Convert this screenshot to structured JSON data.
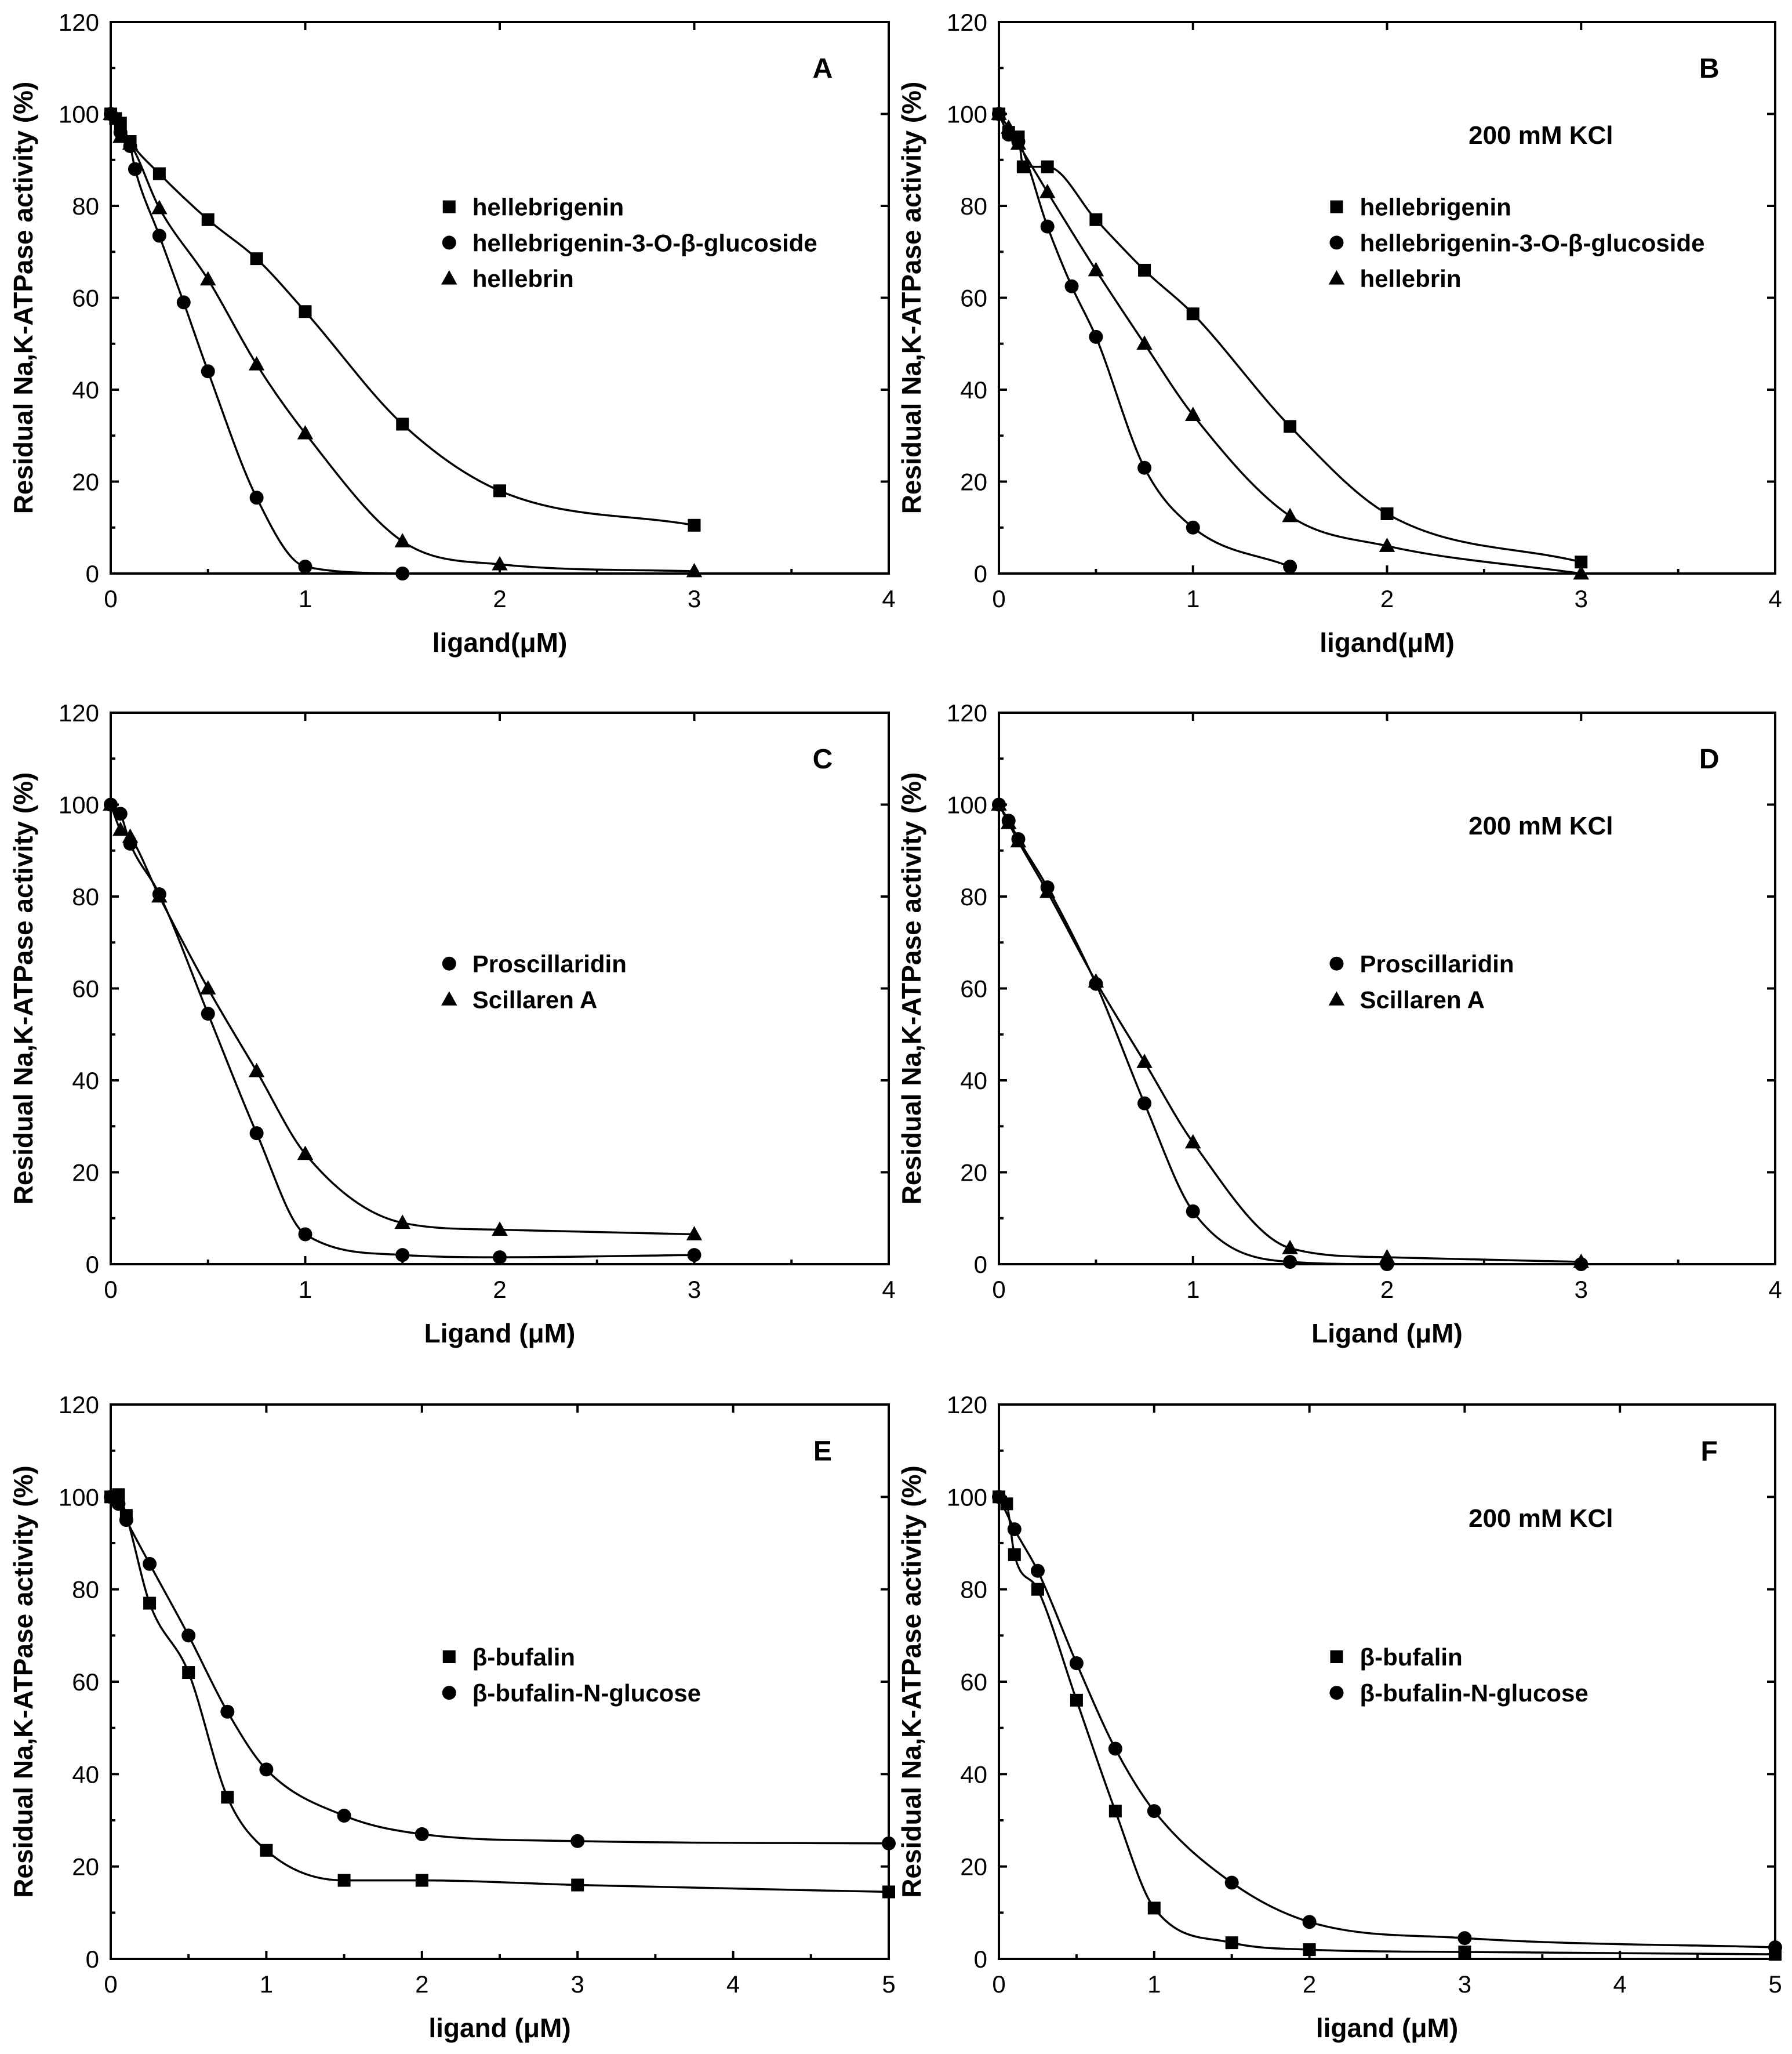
{
  "chart_data": [
    {
      "type": "scatter",
      "panel_label": "A",
      "annotation": "",
      "xlabel": "ligand(μM)",
      "ylabel": "Residual Na,K-ATPase activity (%)",
      "xlim": [
        0,
        4
      ],
      "ylim": [
        0,
        120
      ],
      "xticks": [
        "0",
        "1",
        "2",
        "3",
        "4"
      ],
      "yticks": [
        "0",
        "20",
        "40",
        "60",
        "80",
        "100",
        "120"
      ],
      "legend_position": "upper-middle",
      "series": [
        {
          "name": "hellebrigenin",
          "marker": "square",
          "x": [
            0,
            0.025,
            0.05,
            0.1,
            0.25,
            0.5,
            0.75,
            1,
            1.5,
            2,
            3
          ],
          "y": [
            100,
            99,
            98,
            94,
            87,
            77,
            68.5,
            57,
            32.5,
            18,
            10.5
          ]
        },
        {
          "name": "hellebrigenin-3-O-β-glucoside",
          "marker": "circle",
          "x": [
            0,
            0.05,
            0.1,
            0.125,
            0.25,
            0.375,
            0.5,
            0.75,
            1,
            1.5
          ],
          "y": [
            100,
            96,
            93,
            88,
            73.5,
            59,
            44,
            16.5,
            1.5,
            0
          ]
        },
        {
          "name": "hellebrin",
          "marker": "triangle",
          "x": [
            0,
            0.05,
            0.1,
            0.25,
            0.5,
            0.75,
            1,
            1.5,
            2,
            3
          ],
          "y": [
            100,
            95,
            93.5,
            79.5,
            64,
            45.5,
            30.5,
            7,
            2,
            0.5
          ]
        }
      ]
    },
    {
      "type": "scatter",
      "panel_label": "B",
      "annotation": "200 mM KCl",
      "xlabel": "ligand(μM)",
      "ylabel": "Residual Na,K-ATPase activity (%)",
      "xlim": [
        0,
        4
      ],
      "ylim": [
        0,
        120
      ],
      "xticks": [
        "0",
        "1",
        "2",
        "3",
        "4"
      ],
      "yticks": [
        "0",
        "20",
        "40",
        "60",
        "80",
        "100",
        "120"
      ],
      "legend_position": "upper-middle",
      "series": [
        {
          "name": "hellebrigenin",
          "marker": "square",
          "x": [
            0,
            0.05,
            0.1,
            0.125,
            0.25,
            0.5,
            0.75,
            1,
            1.5,
            2,
            3
          ],
          "y": [
            100,
            96,
            95,
            88.5,
            88.5,
            77,
            66,
            56.5,
            32,
            13,
            2.5
          ]
        },
        {
          "name": "hellebrigenin-3-O-β-glucoside",
          "marker": "circle",
          "x": [
            0,
            0.05,
            0.1,
            0.25,
            0.375,
            0.5,
            0.75,
            1,
            1.5
          ],
          "y": [
            100,
            95.5,
            94,
            75.5,
            62.5,
            51.5,
            23,
            10,
            1.5
          ]
        },
        {
          "name": "hellebrin",
          "marker": "triangle",
          "x": [
            0,
            0.05,
            0.1,
            0.25,
            0.5,
            0.75,
            1,
            1.5,
            2,
            3
          ],
          "y": [
            100,
            97,
            93.5,
            83,
            66,
            50,
            34.5,
            12.5,
            6,
            0
          ]
        }
      ]
    },
    {
      "type": "scatter",
      "panel_label": "C",
      "annotation": "",
      "xlabel": "Ligand (μM)",
      "ylabel": "Residual Na,K-ATPase activity (%)",
      "xlim": [
        0,
        4
      ],
      "ylim": [
        0,
        120
      ],
      "xticks": [
        "0",
        "1",
        "2",
        "3",
        "4"
      ],
      "yticks": [
        "0",
        "20",
        "40",
        "60",
        "80",
        "100",
        "120"
      ],
      "legend_position": "middle",
      "series": [
        {
          "name": "Proscillaridin",
          "marker": "circle",
          "x": [
            0,
            0.05,
            0.1,
            0.25,
            0.5,
            0.75,
            1,
            1.5,
            2,
            3
          ],
          "y": [
            100,
            98,
            91.5,
            80.5,
            54.5,
            28.5,
            6.5,
            2,
            1.5,
            2
          ]
        },
        {
          "name": "Scillaren A",
          "marker": "triangle",
          "x": [
            0,
            0.05,
            0.1,
            0.25,
            0.5,
            0.75,
            1,
            1.5,
            2,
            3
          ],
          "y": [
            100,
            94.5,
            93,
            80,
            60,
            42,
            24,
            9,
            7.5,
            6.5
          ]
        }
      ]
    },
    {
      "type": "scatter",
      "panel_label": "D",
      "annotation": "200 mM KCl",
      "xlabel": "Ligand (μM)",
      "ylabel": "Residual Na,K-ATPase activity (%)",
      "xlim": [
        0,
        4
      ],
      "ylim": [
        0,
        120
      ],
      "xticks": [
        "0",
        "1",
        "2",
        "3",
        "4"
      ],
      "yticks": [
        "0",
        "20",
        "40",
        "60",
        "80",
        "100",
        "120"
      ],
      "legend_position": "middle",
      "series": [
        {
          "name": "Proscillaridin",
          "marker": "circle",
          "x": [
            0,
            0.05,
            0.1,
            0.25,
            0.5,
            0.75,
            1,
            1.5,
            2,
            3
          ],
          "y": [
            100,
            96.5,
            92.5,
            82,
            61,
            35,
            11.5,
            0.5,
            0,
            0
          ]
        },
        {
          "name": "Scillaren A",
          "marker": "triangle",
          "x": [
            0,
            0.05,
            0.1,
            0.25,
            0.5,
            0.75,
            1,
            1.5,
            2,
            3
          ],
          "y": [
            100,
            96,
            92,
            81,
            61.5,
            44,
            26.5,
            3.5,
            1.5,
            0.5
          ]
        }
      ]
    },
    {
      "type": "scatter",
      "panel_label": "E",
      "annotation": "",
      "xlabel": "ligand (μM)",
      "ylabel": "Residual Na,K-ATPase activity (%)",
      "xlim": [
        0,
        5
      ],
      "ylim": [
        0,
        120
      ],
      "xticks": [
        "0",
        "1",
        "2",
        "3",
        "4",
        "5"
      ],
      "yticks": [
        "0",
        "20",
        "40",
        "60",
        "80",
        "100",
        "120"
      ],
      "legend_position": "middle",
      "series": [
        {
          "name": "β-bufalin",
          "marker": "square",
          "x": [
            0,
            0.05,
            0.1,
            0.25,
            0.5,
            0.75,
            1,
            1.5,
            2,
            3,
            5
          ],
          "y": [
            100,
            100.5,
            96,
            77,
            62,
            35,
            23.5,
            17,
            17,
            16,
            14.5
          ]
        },
        {
          "name": "β-bufalin-N-glucose",
          "marker": "circle",
          "x": [
            0,
            0.05,
            0.1,
            0.25,
            0.5,
            0.75,
            1,
            1.5,
            2,
            3,
            5
          ],
          "y": [
            100,
            98.5,
            95,
            85.5,
            70,
            53.5,
            41,
            31,
            27,
            25.5,
            25
          ]
        }
      ]
    },
    {
      "type": "scatter",
      "panel_label": "F",
      "annotation": "200 mM KCl",
      "xlabel": "ligand (μM)",
      "ylabel": "Residual Na,K-ATPase activity (%)",
      "xlim": [
        0,
        5
      ],
      "ylim": [
        0,
        120
      ],
      "xticks": [
        "0",
        "1",
        "2",
        "3",
        "4",
        "5"
      ],
      "yticks": [
        "0",
        "20",
        "40",
        "60",
        "80",
        "100",
        "120"
      ],
      "legend_position": "middle",
      "series": [
        {
          "name": "β-bufalin",
          "marker": "square",
          "x": [
            0,
            0.05,
            0.1,
            0.25,
            0.5,
            0.75,
            1,
            1.5,
            2,
            3,
            5
          ],
          "y": [
            100,
            98.5,
            87.5,
            80,
            56,
            32,
            11,
            3.5,
            2,
            1.5,
            1
          ]
        },
        {
          "name": "β-bufalin-N-glucose",
          "marker": "circle",
          "x": [
            0,
            0.1,
            0.25,
            0.5,
            0.75,
            1,
            1.5,
            2,
            3,
            5
          ],
          "y": [
            100,
            93,
            84,
            64,
            45.5,
            32,
            16.5,
            8,
            4.5,
            2.5
          ]
        }
      ]
    }
  ]
}
